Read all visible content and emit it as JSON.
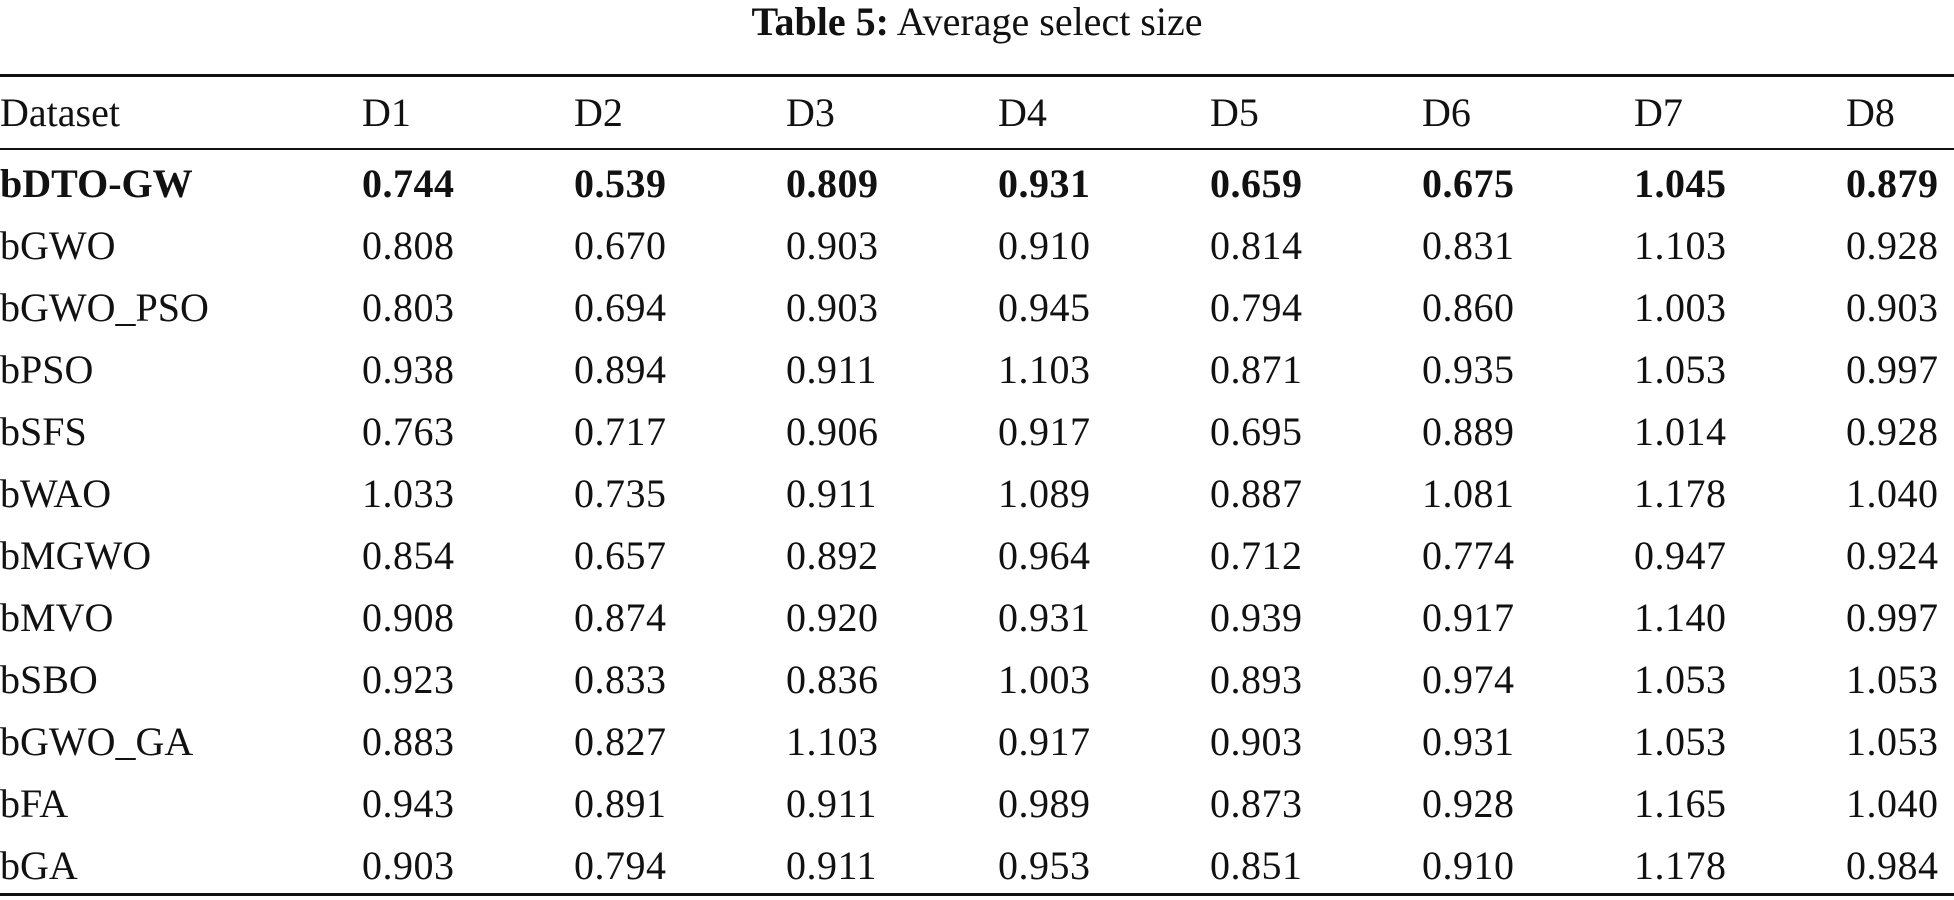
{
  "caption": {
    "label": "Table 5:",
    "text": "Average select size"
  },
  "columns": [
    "Dataset",
    "D1",
    "D2",
    "D3",
    "D4",
    "D5",
    "D6",
    "D7",
    "D8"
  ],
  "rows": [
    {
      "name": "bDTO-GW",
      "values": [
        "0.744",
        "0.539",
        "0.809",
        "0.931",
        "0.659",
        "0.675",
        "1.045",
        "0.879"
      ]
    },
    {
      "name": "bGWO",
      "values": [
        "0.808",
        "0.670",
        "0.903",
        "0.910",
        "0.814",
        "0.831",
        "1.103",
        "0.928"
      ]
    },
    {
      "name": "bGWO_PSO",
      "values": [
        "0.803",
        "0.694",
        "0.903",
        "0.945",
        "0.794",
        "0.860",
        "1.003",
        "0.903"
      ]
    },
    {
      "name": "bPSO",
      "values": [
        "0.938",
        "0.894",
        "0.911",
        "1.103",
        "0.871",
        "0.935",
        "1.053",
        "0.997"
      ]
    },
    {
      "name": "bSFS",
      "values": [
        "0.763",
        "0.717",
        "0.906",
        "0.917",
        "0.695",
        "0.889",
        "1.014",
        "0.928"
      ]
    },
    {
      "name": "bWAO",
      "values": [
        "1.033",
        "0.735",
        "0.911",
        "1.089",
        "0.887",
        "1.081",
        "1.178",
        "1.040"
      ]
    },
    {
      "name": "bMGWO",
      "values": [
        "0.854",
        "0.657",
        "0.892",
        "0.964",
        "0.712",
        "0.774",
        "0.947",
        "0.924"
      ]
    },
    {
      "name": "bMVO",
      "values": [
        "0.908",
        "0.874",
        "0.920",
        "0.931",
        "0.939",
        "0.917",
        "1.140",
        "0.997"
      ]
    },
    {
      "name": "bSBO",
      "values": [
        "0.923",
        "0.833",
        "0.836",
        "1.003",
        "0.893",
        "0.974",
        "1.053",
        "1.053"
      ]
    },
    {
      "name": "bGWO_GA",
      "values": [
        "0.883",
        "0.827",
        "1.103",
        "0.917",
        "0.903",
        "0.931",
        "1.053",
        "1.053"
      ]
    },
    {
      "name": "bFA",
      "values": [
        "0.943",
        "0.891",
        "0.911",
        "0.989",
        "0.873",
        "0.928",
        "1.165",
        "1.040"
      ]
    },
    {
      "name": "bGA",
      "values": [
        "0.903",
        "0.794",
        "0.911",
        "0.953",
        "0.851",
        "0.910",
        "1.178",
        "0.984"
      ]
    }
  ],
  "bold_row": "bDTO-GW"
}
